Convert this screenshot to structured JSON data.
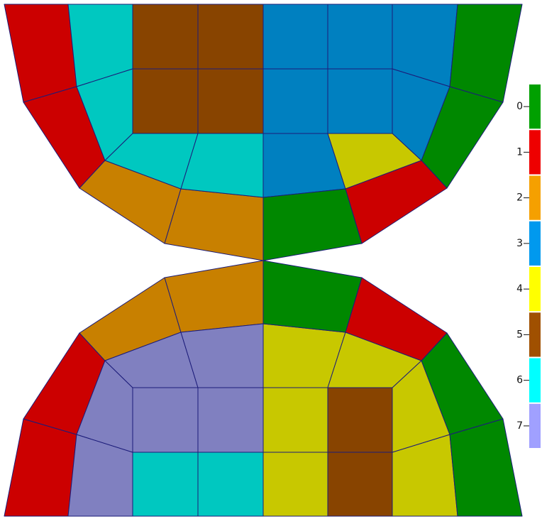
{
  "colorbar": {
    "labels": [
      "0",
      "1",
      "2",
      "3",
      "4",
      "5",
      "6",
      "7"
    ],
    "colors": [
      "#00a000",
      "#ee0000",
      "#f5a000",
      "#0099ee",
      "#ffff00",
      "#a05000",
      "#00ffff",
      "#a0a0ff"
    ]
  }
}
